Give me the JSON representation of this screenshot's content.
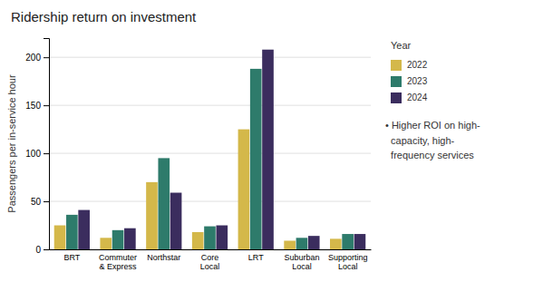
{
  "chart_data": {
    "type": "bar",
    "title": "Ridership return on investment",
    "ylabel": "Passengers per in-service hour",
    "categories": [
      "BRT",
      "Commuter\n& Express",
      "Northstar",
      "Core\nLocal",
      "LRT",
      "Suburban\nLocal",
      "Supporting\nLocal"
    ],
    "series": [
      {
        "name": "2022",
        "color": "#d4b84a",
        "values": [
          25,
          12,
          70,
          18,
          125,
          9,
          11
        ]
      },
      {
        "name": "2023",
        "color": "#2e7b6b",
        "values": [
          36,
          20,
          95,
          24,
          188,
          12,
          16
        ]
      },
      {
        "name": "2024",
        "color": "#3b2d5e",
        "values": [
          41,
          22,
          59,
          25,
          208,
          14,
          16
        ]
      }
    ],
    "ylim": [
      0,
      220
    ],
    "yticks": [
      0,
      50,
      100,
      150,
      200
    ],
    "grid": true,
    "legend": "right",
    "legend_title": "Year",
    "annotations": [
      "• Higher ROI on high-\n  capacity, high-\n  frequency services"
    ]
  }
}
